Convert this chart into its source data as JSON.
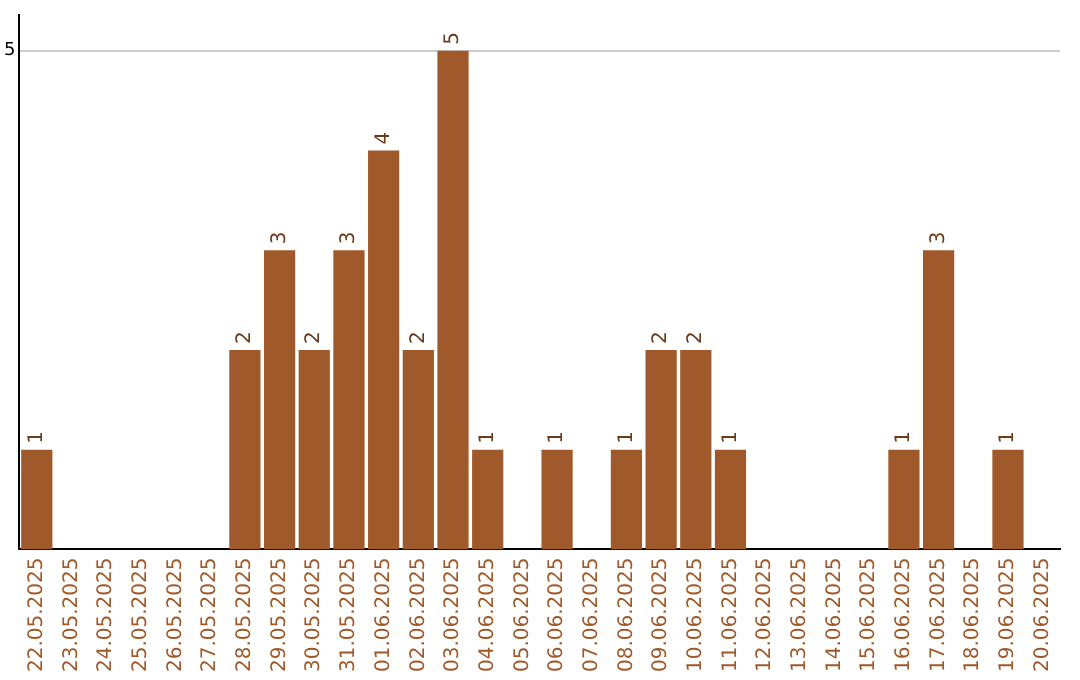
{
  "chart_data": {
    "type": "bar",
    "categories": [
      "22.05.2025",
      "23.05.2025",
      "24.05.2025",
      "25.05.2025",
      "26.05.2025",
      "27.05.2025",
      "28.05.2025",
      "29.05.2025",
      "30.05.2025",
      "31.05.2025",
      "01.06.2025",
      "02.06.2025",
      "03.06.2025",
      "04.06.2025",
      "05.06.2025",
      "06.06.2025",
      "07.06.2025",
      "08.06.2025",
      "09.06.2025",
      "10.06.2025",
      "11.06.2025",
      "12.06.2025",
      "13.06.2025",
      "14.06.2025",
      "15.06.2025",
      "16.06.2025",
      "17.06.2025",
      "18.06.2025",
      "19.06.2025",
      "20.06.2025"
    ],
    "values": [
      1,
      0,
      0,
      0,
      0,
      0,
      2,
      3,
      2,
      3,
      4,
      2,
      5,
      1,
      0,
      1,
      0,
      1,
      2,
      2,
      1,
      0,
      0,
      0,
      0,
      1,
      3,
      0,
      1,
      0
    ],
    "value_labels": [
      "1",
      null,
      null,
      null,
      null,
      null,
      "2",
      "3",
      "2",
      "3",
      "4",
      "2",
      "5",
      "1",
      null,
      "1",
      null,
      "1",
      "2",
      "2",
      "1",
      null,
      null,
      null,
      null,
      "1",
      "3",
      null,
      "1",
      null
    ],
    "color": "#a0592a",
    "ylim": [
      0,
      5.36
    ],
    "yticks": [
      5
    ],
    "grid": "y",
    "legend": false
  }
}
